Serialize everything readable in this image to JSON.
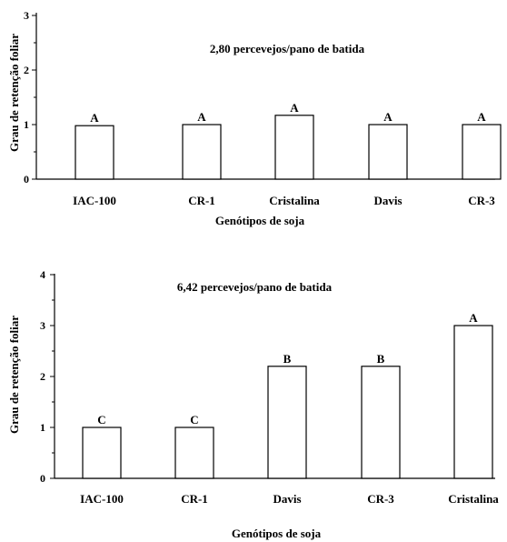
{
  "chart_data": [
    {
      "type": "bar",
      "annotation": "2,80 percevejos/pano de batida",
      "xlabel": "Genótipos de soja",
      "ylabel": "Grau de retenção foliar",
      "ylim": [
        0,
        3
      ],
      "yticks": [
        "0",
        "1",
        "2",
        "3"
      ],
      "categories": [
        "IAC-100",
        "CR-1",
        "Cristalina",
        "Davis",
        "CR-3"
      ],
      "values": [
        0.98,
        1.0,
        1.17,
        1.0,
        1.0
      ],
      "letters": [
        "A",
        "A",
        "A",
        "A",
        "A"
      ],
      "grid": false,
      "legend": "none",
      "bar_color": "#ffffff",
      "line_color": "#000000"
    },
    {
      "type": "bar",
      "annotation": "6,42 percevejos/pano de batida",
      "xlabel": "Genótipos de soja",
      "ylabel": "Grau de retenção foliar",
      "ylim": [
        0,
        4
      ],
      "yticks": [
        "0",
        "1",
        "2",
        "3",
        "4"
      ],
      "categories": [
        "IAC-100",
        "CR-1",
        "Davis",
        "CR-3",
        "Cristalina"
      ],
      "values": [
        1.0,
        1.0,
        2.2,
        2.2,
        3.0
      ],
      "letters": [
        "C",
        "C",
        "B",
        "B",
        "A"
      ],
      "grid": false,
      "legend": "none",
      "bar_color": "#ffffff",
      "line_color": "#000000"
    }
  ]
}
